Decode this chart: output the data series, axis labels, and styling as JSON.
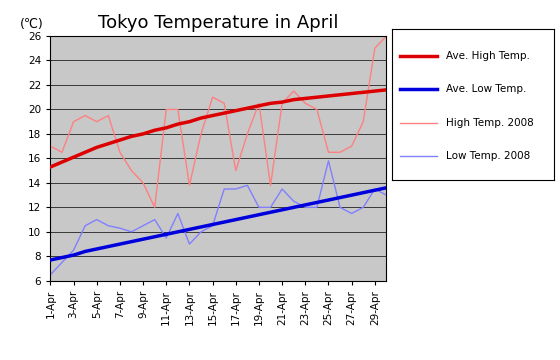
{
  "title": "Tokyo Temperature in April",
  "ylabel": "(℃)",
  "ylim": [
    6,
    26
  ],
  "yticks": [
    6,
    8,
    10,
    12,
    14,
    16,
    18,
    20,
    22,
    24,
    26
  ],
  "x_labels": [
    "1-Apr",
    "3-Apr",
    "5-Apr",
    "7-Apr",
    "9-Apr",
    "11-Apr",
    "13-Apr",
    "15-Apr",
    "17-Apr",
    "19-Apr",
    "21-Apr",
    "23-Apr",
    "25-Apr",
    "27-Apr",
    "29-Apr"
  ],
  "days": [
    1,
    2,
    3,
    4,
    5,
    6,
    7,
    8,
    9,
    10,
    11,
    12,
    13,
    14,
    15,
    16,
    17,
    18,
    19,
    20,
    21,
    22,
    23,
    24,
    25,
    26,
    27,
    28,
    29,
    30
  ],
  "ave_high": [
    15.3,
    15.7,
    16.1,
    16.5,
    16.9,
    17.2,
    17.5,
    17.8,
    18.0,
    18.3,
    18.5,
    18.8,
    19.0,
    19.3,
    19.5,
    19.7,
    19.9,
    20.1,
    20.3,
    20.5,
    20.6,
    20.8,
    20.9,
    21.0,
    21.1,
    21.2,
    21.3,
    21.4,
    21.5,
    21.6
  ],
  "ave_low": [
    7.7,
    7.9,
    8.1,
    8.4,
    8.6,
    8.8,
    9.0,
    9.2,
    9.4,
    9.6,
    9.8,
    10.0,
    10.2,
    10.4,
    10.6,
    10.8,
    11.0,
    11.2,
    11.4,
    11.6,
    11.8,
    12.0,
    12.2,
    12.4,
    12.6,
    12.8,
    13.0,
    13.2,
    13.4,
    13.6
  ],
  "high_2008": [
    17.0,
    16.5,
    19.0,
    19.5,
    19.0,
    19.5,
    16.5,
    15.0,
    14.0,
    12.0,
    20.0,
    20.0,
    13.8,
    18.0,
    21.0,
    20.5,
    15.0,
    18.0,
    20.5,
    13.8,
    20.5,
    21.5,
    20.5,
    20.0,
    16.5,
    16.5,
    17.0,
    19.0,
    25.0,
    26.0
  ],
  "low_2008": [
    6.5,
    7.5,
    8.5,
    10.5,
    11.0,
    10.5,
    10.3,
    10.0,
    10.5,
    11.0,
    9.5,
    11.5,
    9.0,
    10.0,
    10.5,
    13.5,
    13.5,
    13.8,
    12.0,
    12.0,
    13.5,
    12.5,
    12.0,
    12.0,
    15.8,
    12.0,
    11.5,
    12.0,
    13.5,
    13.0
  ],
  "color_ave_high": "#dd0000",
  "color_ave_low": "#0000dd",
  "color_high_2008": "#ff8080",
  "color_low_2008": "#8080ff",
  "bg_color": "#c8c8c8",
  "legend_labels": [
    "Ave. High Temp.",
    "Ave. Low Temp.",
    "High Temp. 2008",
    "Low Temp. 2008"
  ],
  "title_fontsize": 13,
  "tick_fontsize": 7.5
}
